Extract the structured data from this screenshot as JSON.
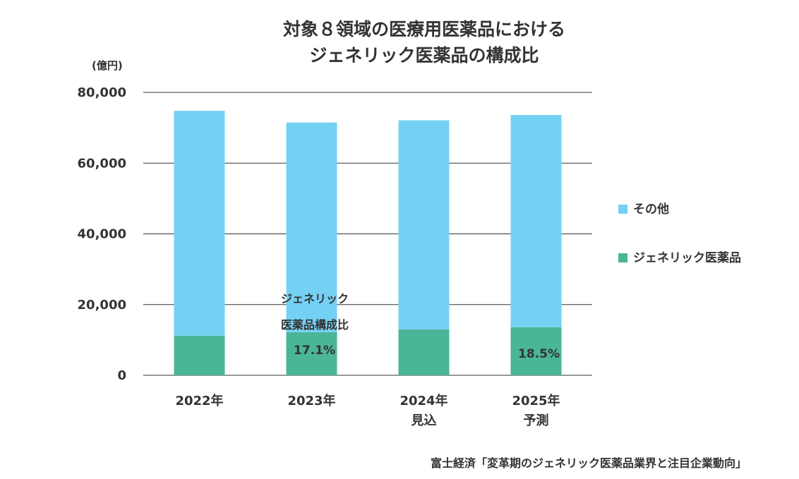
{
  "chart_data": {
    "type": "bar",
    "stacked": true,
    "title_lines": [
      "対象８領域の医療用医薬品における",
      "ジェネリック医薬品の構成比"
    ],
    "unit_label": "(億円)",
    "categories": [
      [
        "2022年"
      ],
      [
        "2023年"
      ],
      [
        "2024年",
        "見込"
      ],
      [
        "2025年",
        "予測"
      ]
    ],
    "series": [
      {
        "name": "ジェネリック医薬品",
        "color": "#4bb597",
        "values": [
          11200,
          12200,
          13000,
          13600
        ]
      },
      {
        "name": "その他",
        "color": "#75d1f4",
        "values": [
          63600,
          59300,
          59100,
          60000
        ]
      }
    ],
    "ylim": [
      0,
      80000
    ],
    "yticks": [
      "0",
      "20,000",
      "40,000",
      "60,000",
      "80,000"
    ],
    "ytick_values": [
      0,
      20000,
      40000,
      60000,
      80000
    ],
    "grid": true,
    "legend_position": "right",
    "annotation_lines": [
      "ジェネリック",
      "医薬品構成比"
    ],
    "percent_labels": [
      "",
      "17.1%",
      "",
      "18.5%"
    ]
  },
  "source_note": "富士経済「変革期のジェネリック医薬品業界と注目企業動向」"
}
